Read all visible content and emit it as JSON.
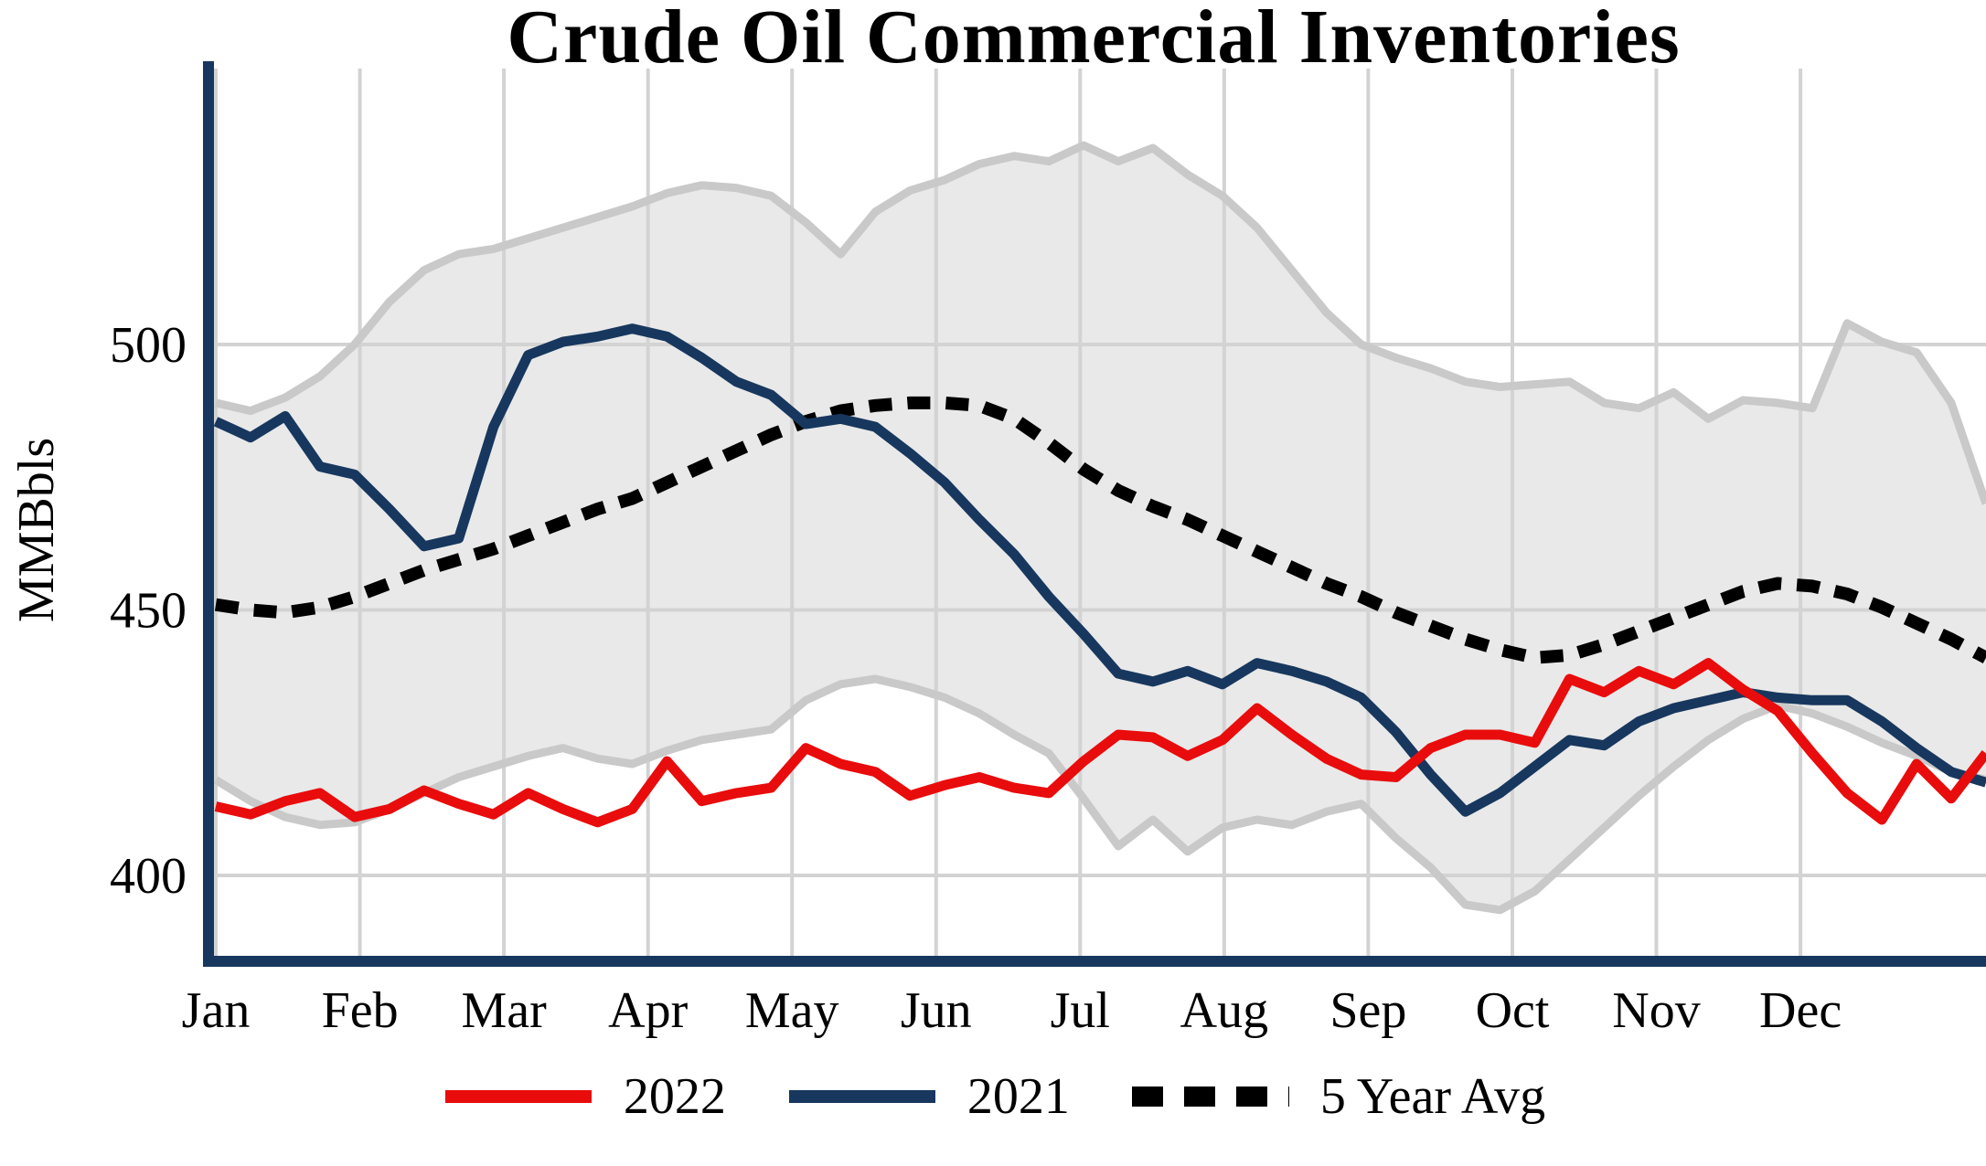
{
  "chart_data": {
    "type": "line",
    "title": "Crude Oil Commercial Inventories",
    "ylabel": "MMBbls",
    "x_unit": "weekly values, 52 points spanning Jan through Dec",
    "x_tick_labels": [
      "Jan",
      "Feb",
      "Mar",
      "Apr",
      "May",
      "Jun",
      "Jul",
      "Aug",
      "Sep",
      "Oct",
      "Nov",
      "Dec"
    ],
    "y_ticks": [
      400,
      450,
      500
    ],
    "ylim": [
      384,
      552
    ],
    "grid": "light gray vertical month lines and horizontal lines at y ticks",
    "legend_position": "bottom center",
    "colors": {
      "axis": "#17375e",
      "grid": "#d3d3d3",
      "background": "#ffffff"
    },
    "series": [
      {
        "name": "2022",
        "color": "#e90c0c",
        "style": "solid",
        "values": [
          413,
          411.5,
          414,
          415.5,
          411,
          412.5,
          416,
          413.5,
          411.5,
          415.5,
          412.5,
          410,
          412.5,
          421.5,
          414,
          415.5,
          416.5,
          424,
          421,
          419.5,
          415,
          417,
          418.5,
          416.5,
          415.5,
          421.5,
          426.5,
          426,
          422.5,
          425.5,
          431.5,
          426.5,
          422,
          419,
          418.5,
          424,
          426.5,
          426.5,
          425,
          437,
          434.5,
          438.5,
          436,
          440,
          435,
          431,
          423,
          415.5,
          410.5,
          421,
          414.5,
          423
        ]
      },
      {
        "name": "2021",
        "color": "#17375e",
        "style": "solid",
        "values": [
          485.5,
          482.5,
          486.5,
          477,
          475.5,
          469,
          462,
          463.5,
          484.5,
          498,
          500.5,
          501.5,
          503,
          501.5,
          497.5,
          493,
          490.5,
          485,
          486,
          484.5,
          479.5,
          474,
          467,
          460.5,
          452.5,
          445.5,
          438,
          436.5,
          438.5,
          436,
          440,
          438.5,
          436.5,
          433.5,
          427,
          419,
          412,
          415.5,
          420.5,
          425.5,
          424.5,
          429,
          431.5,
          433,
          434.5,
          433.5,
          433,
          433,
          429,
          424,
          419.5,
          417.5
        ]
      },
      {
        "name": "5 Year Avg",
        "color": "#000000",
        "style": "dotted",
        "values": [
          451,
          450,
          449.5,
          450.5,
          452.5,
          455,
          457.5,
          459.5,
          461.5,
          464,
          466.5,
          469,
          471,
          474,
          477,
          480,
          483,
          485.5,
          487.5,
          488.5,
          489,
          489,
          488.5,
          486,
          481.5,
          476.5,
          472.5,
          469.5,
          467,
          464,
          461,
          458,
          455,
          452.5,
          449.5,
          447,
          444.5,
          442.5,
          441,
          441.5,
          443.5,
          446,
          448.5,
          451,
          453.5,
          455,
          454.5,
          453,
          450.5,
          447.5,
          444.5,
          441
        ]
      }
    ],
    "band": {
      "name": "5-year min-max range (shaded)",
      "fill": "#e9e9e9",
      "edge": "#c9c9c9",
      "upper": [
        489,
        487.5,
        490,
        494,
        500,
        508,
        514,
        517,
        518,
        520,
        522,
        524,
        526,
        528.5,
        530,
        529.5,
        528,
        523,
        517,
        525,
        529,
        531,
        534,
        535.5,
        534.5,
        537.5,
        534.5,
        537,
        532,
        528,
        522,
        514,
        506,
        500,
        497.5,
        495.5,
        493,
        492,
        492.5,
        493,
        489,
        488,
        491,
        486,
        489.5,
        489,
        488,
        504,
        500.5,
        498.5,
        489,
        470
      ],
      "lower": [
        418,
        414,
        411,
        409.5,
        410,
        412.5,
        415.5,
        418.5,
        420.5,
        422.5,
        424,
        422,
        421,
        423.5,
        425.5,
        426.5,
        427.5,
        433,
        436,
        437,
        435.5,
        433.5,
        430.5,
        426.5,
        423,
        414.5,
        405.5,
        410.5,
        404.5,
        409,
        410.5,
        409.5,
        412,
        413.5,
        407,
        401.5,
        394.5,
        393.5,
        397,
        403,
        409,
        415,
        420.5,
        425.5,
        429.5,
        432,
        430.5,
        428,
        425,
        422.5,
        419.5,
        418
      ]
    }
  },
  "legend": {
    "items": [
      "2022",
      "2021",
      "5 Year Avg"
    ]
  }
}
